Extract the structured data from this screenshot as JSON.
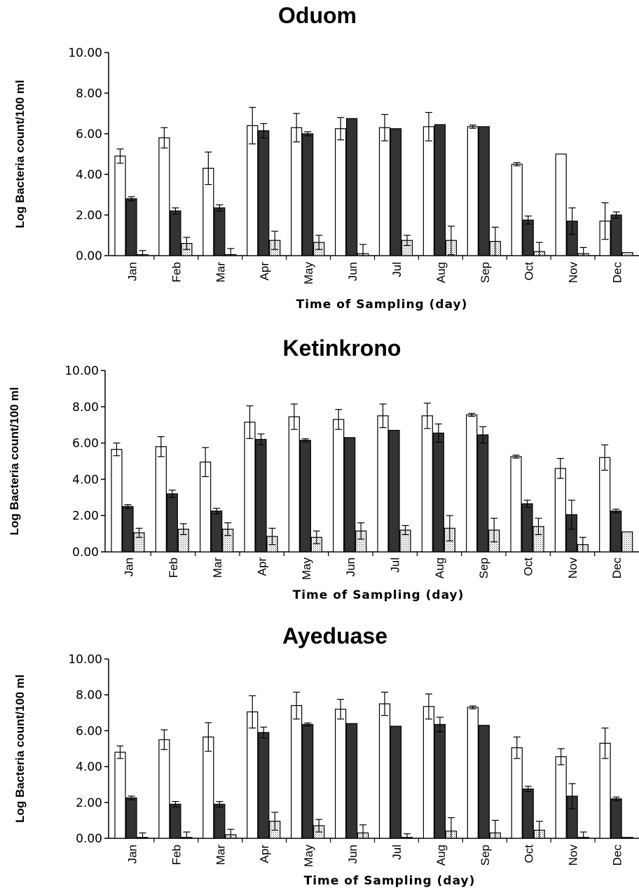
{
  "colors": {
    "series_1": "#ffffff",
    "series_2": "#333333",
    "series_3": "dotted-light-grey"
  },
  "chart_data": [
    {
      "type": "bar",
      "title": "Oduom",
      "xlabel": "Time of Sampling (day)",
      "ylabel": "Log Bacteria count/100 ml",
      "ylim": [
        0,
        10
      ],
      "ytick_labels": [
        "0.00",
        "2.00",
        "4.00",
        "6.00",
        "8.00",
        "10.00"
      ],
      "categories": [
        "Jan",
        "Feb",
        "Mar",
        "Apr",
        "May",
        "Jun",
        "Jul",
        "Aug",
        "Sep",
        "Oct",
        "Nov",
        "Dec"
      ],
      "series": [
        {
          "values": [
            4.9,
            5.8,
            4.3,
            6.4,
            6.3,
            6.25,
            6.3,
            6.35,
            6.35,
            4.5,
            5.0,
            1.7
          ],
          "errors": [
            0.35,
            0.5,
            0.8,
            0.9,
            0.7,
            0.55,
            0.65,
            0.7,
            0.08,
            0.08,
            0,
            0.9
          ]
        },
        {
          "values": [
            2.8,
            2.2,
            2.35,
            6.15,
            6.0,
            6.75,
            6.25,
            6.45,
            6.35,
            1.75,
            1.7,
            2.0
          ],
          "errors": [
            0.1,
            0.15,
            0.15,
            0.35,
            0.1,
            0,
            0,
            0,
            0,
            0.2,
            0.65,
            0.15
          ]
        },
        {
          "values": [
            0.05,
            0.6,
            0.05,
            0.75,
            0.65,
            0.1,
            0.75,
            0.75,
            0.7,
            0.2,
            0.1,
            0.15
          ],
          "errors": [
            0.2,
            0.3,
            0.3,
            0.45,
            0.35,
            0.45,
            0.25,
            0.7,
            0.7,
            0.45,
            0.3,
            0
          ]
        }
      ]
    },
    {
      "type": "bar",
      "title": "Ketinkrono",
      "xlabel": "Time of Sampling (day)",
      "ylabel": "Log Bacteria count/100 ml",
      "ylim": [
        0,
        10
      ],
      "ytick_labels": [
        "0.00",
        "2.00",
        "4.00",
        "6.00",
        "8.00",
        "10.00"
      ],
      "categories": [
        "Jan",
        "Feb",
        "Mar",
        "Apr",
        "May",
        "Jun",
        "Jul",
        "Aug",
        "Sep",
        "Oct",
        "Nov",
        "Dec"
      ],
      "series": [
        {
          "values": [
            5.65,
            5.8,
            4.95,
            7.15,
            7.45,
            7.3,
            7.5,
            7.5,
            7.55,
            5.25,
            4.6,
            5.2
          ],
          "errors": [
            0.35,
            0.55,
            0.8,
            0.9,
            0.7,
            0.55,
            0.65,
            0.7,
            0.08,
            0.08,
            0.55,
            0.7
          ]
        },
        {
          "values": [
            2.5,
            3.2,
            2.25,
            6.2,
            6.15,
            6.3,
            6.7,
            6.55,
            6.45,
            2.65,
            2.05,
            2.25
          ],
          "errors": [
            0.1,
            0.2,
            0.15,
            0.3,
            0.08,
            0,
            0,
            0.5,
            0.45,
            0.2,
            0.8,
            0.1
          ]
        },
        {
          "values": [
            1.05,
            1.25,
            1.25,
            0.85,
            0.8,
            1.15,
            1.2,
            1.3,
            1.2,
            1.4,
            0.4,
            1.1
          ],
          "errors": [
            0.25,
            0.3,
            0.35,
            0.45,
            0.35,
            0.45,
            0.25,
            0.7,
            0.65,
            0.45,
            0.4,
            0
          ]
        }
      ]
    },
    {
      "type": "bar",
      "title": "Ayeduase",
      "xlabel": "Time of Sampling (day)",
      "ylabel": "Log Bacteria count/100 ml",
      "ylim": [
        0,
        10
      ],
      "ytick_labels": [
        "0.00",
        "2.00",
        "4.00",
        "6.00",
        "8.00",
        "10.00"
      ],
      "categories": [
        "Jan",
        "Feb",
        "Mar",
        "Apr",
        "May",
        "Jun",
        "Jul",
        "Aug",
        "Sep",
        "Oct",
        "Nov",
        "Dec"
      ],
      "series": [
        {
          "values": [
            4.8,
            5.5,
            5.65,
            7.05,
            7.4,
            7.2,
            7.5,
            7.35,
            7.3,
            5.05,
            4.55,
            5.3
          ],
          "errors": [
            0.35,
            0.55,
            0.8,
            0.9,
            0.75,
            0.55,
            0.65,
            0.7,
            0.08,
            0.6,
            0.45,
            0.85
          ]
        },
        {
          "values": [
            2.25,
            1.9,
            1.9,
            5.9,
            6.35,
            6.4,
            6.25,
            6.35,
            6.3,
            2.75,
            2.35,
            2.2
          ],
          "errors": [
            0.1,
            0.15,
            0.15,
            0.3,
            0.08,
            0,
            0,
            0.4,
            0,
            0.15,
            0.7,
            0.1
          ]
        },
        {
          "values": [
            0.05,
            0.05,
            0.2,
            0.95,
            0.7,
            0.3,
            0.05,
            0.4,
            0.3,
            0.45,
            0.05,
            0.05
          ],
          "errors": [
            0.25,
            0.3,
            0.3,
            0.5,
            0.35,
            0.45,
            0.2,
            0.75,
            0.7,
            0.5,
            0.3,
            0
          ]
        }
      ]
    }
  ]
}
